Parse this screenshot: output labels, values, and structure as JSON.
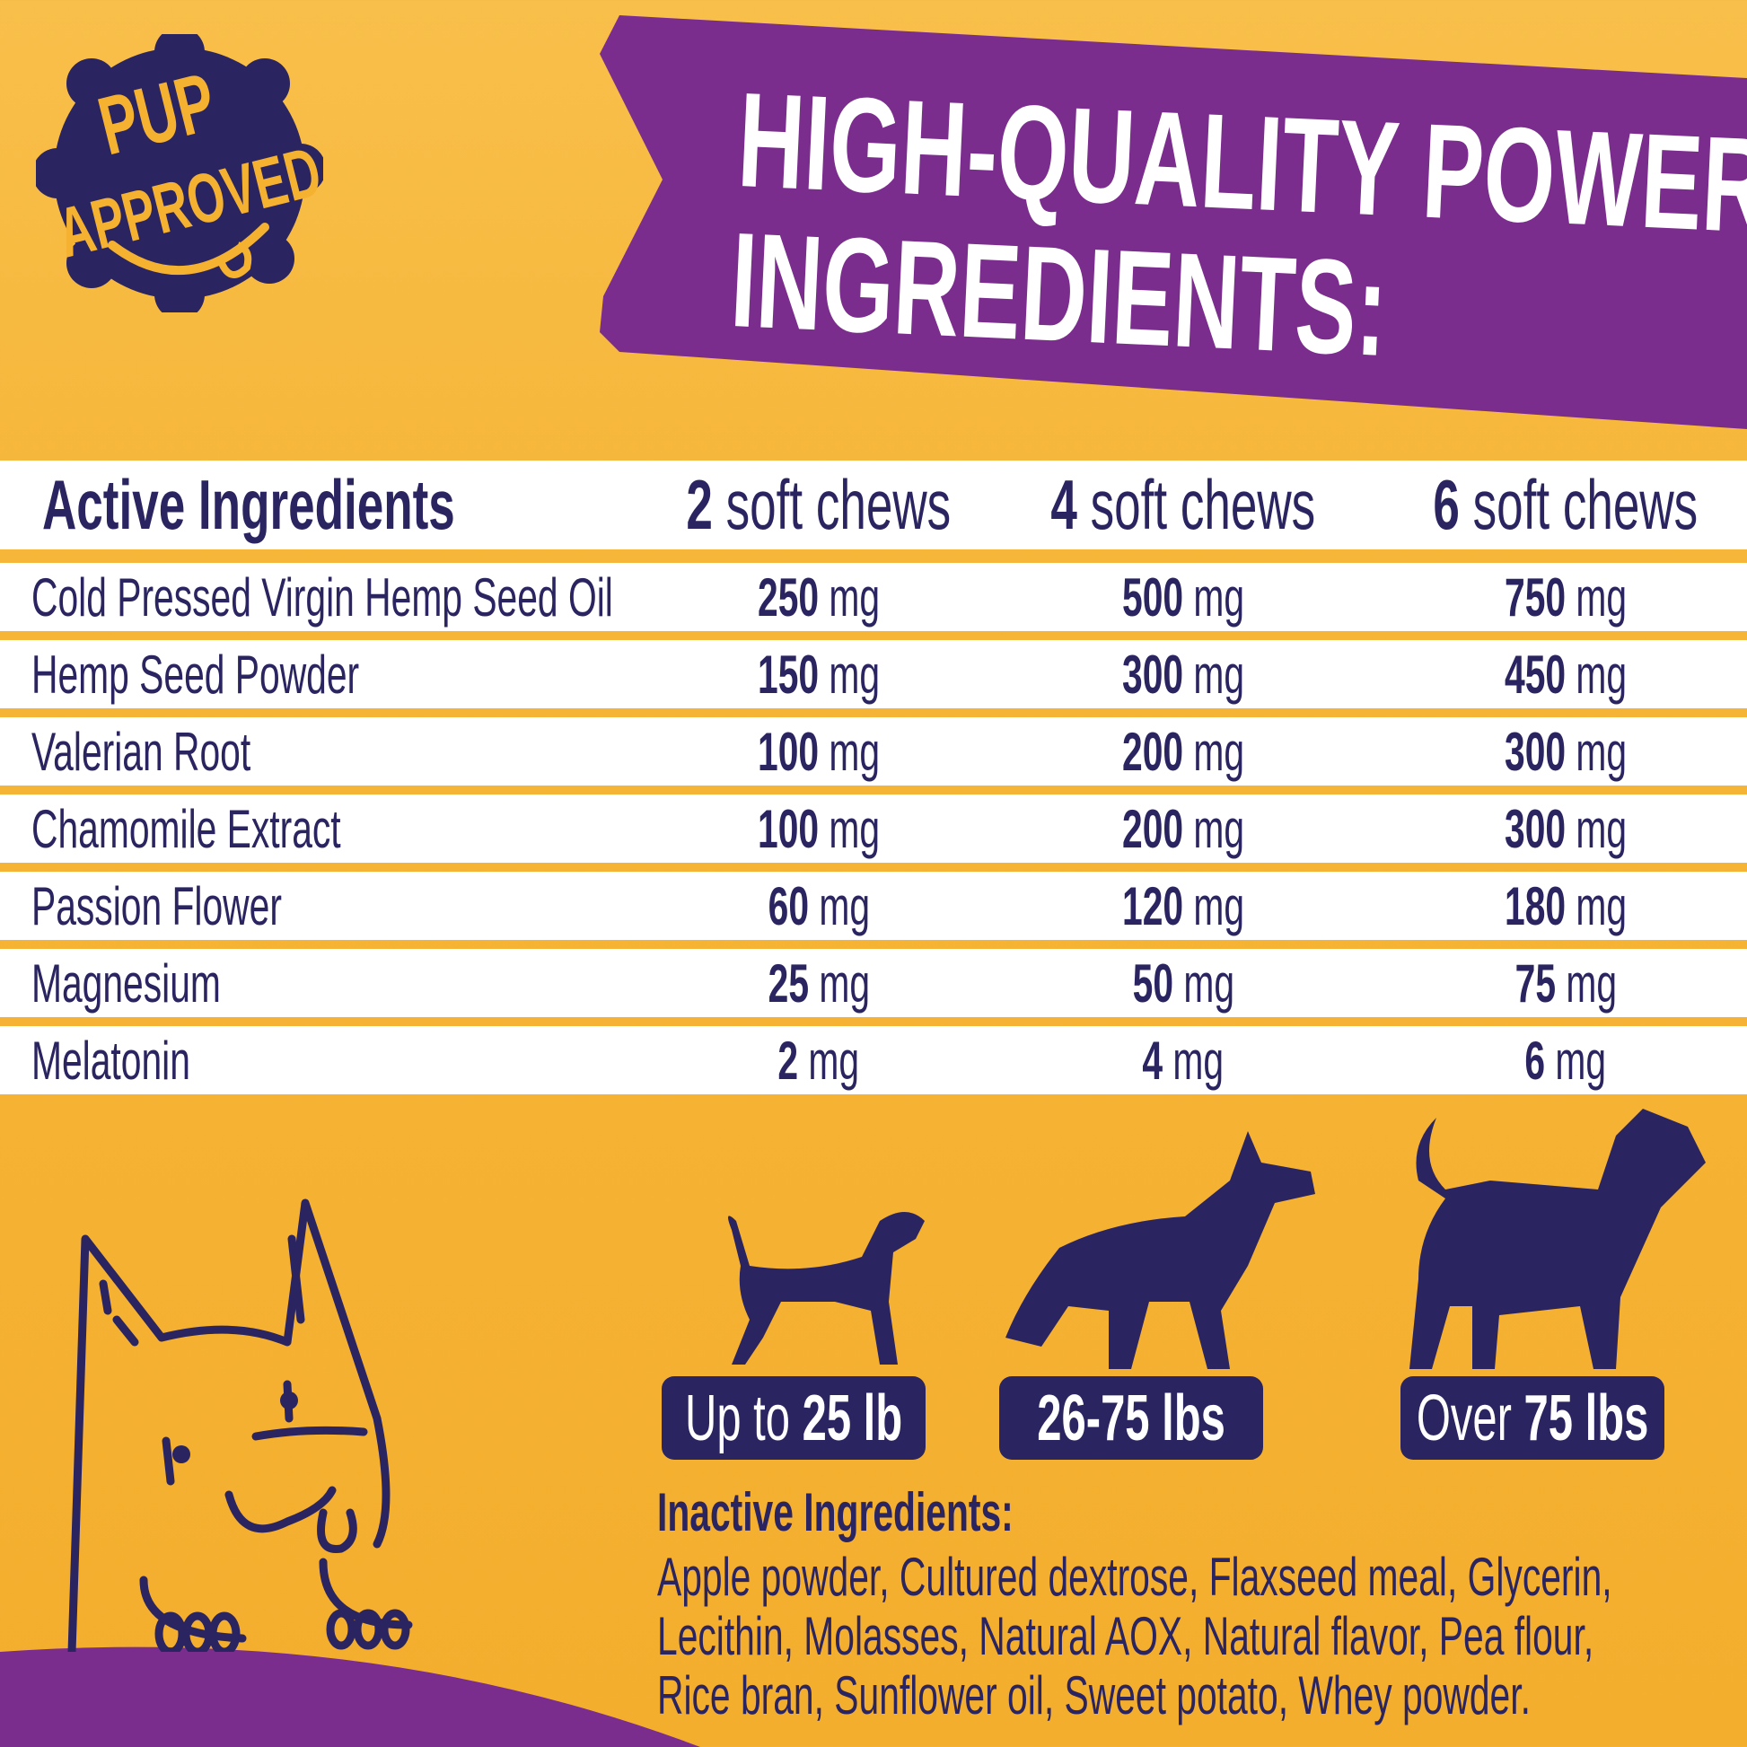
{
  "badge": {
    "line1": "PUP",
    "line2": "APPROVED"
  },
  "banner": {
    "line1": "HIGH-QUALITY POWERFUL",
    "line2": "INGREDIENTS:"
  },
  "table": {
    "headers": [
      {
        "bold": "Active Ingredients",
        "rest": ""
      },
      {
        "bold": "2",
        "rest": " soft chews"
      },
      {
        "bold": "4",
        "rest": " soft chews"
      },
      {
        "bold": "6",
        "rest": " soft chews"
      }
    ],
    "rows": [
      {
        "name": "Cold Pressed Virgin Hemp Seed Oil",
        "v": [
          "250",
          "500",
          "750"
        ]
      },
      {
        "name": "Hemp Seed Powder",
        "v": [
          "150",
          "300",
          "450"
        ]
      },
      {
        "name": "Valerian Root",
        "v": [
          "100",
          "200",
          "300"
        ]
      },
      {
        "name": "Chamomile Extract",
        "v": [
          "100",
          "200",
          "300"
        ]
      },
      {
        "name": "Passion Flower",
        "v": [
          "60",
          "120",
          "180"
        ]
      },
      {
        "name": "Magnesium",
        "v": [
          "25",
          "50",
          "75"
        ]
      },
      {
        "name": "Melatonin",
        "v": [
          "2",
          "4",
          "6"
        ]
      }
    ],
    "unit": "mg"
  },
  "weights": [
    {
      "pre": "Up to ",
      "bold": "25 lb"
    },
    {
      "pre": "",
      "bold": "26-75 lbs"
    },
    {
      "pre": "Over ",
      "bold": "75 lbs"
    }
  ],
  "inactive": {
    "heading": "Inactive Ingredients:",
    "lines": [
      "Apple powder, Cultured dextrose, Flaxseed meal, Glycerin,",
      "Lecithin, Molasses, Natural AOX, Natural flavor, Pea flour,",
      "Rice bran, Sunflower oil, Sweet potato, Whey powder."
    ]
  },
  "colors": {
    "navy": "#2A2460",
    "purple": "#7B2D8E",
    "orange": "#F5B130",
    "white": "#FFFFFF"
  },
  "icons": [
    "pup-approved-badge",
    "cartoon-dog",
    "small-dog-silhouette",
    "medium-dog-silhouette",
    "large-dog-silhouette"
  ]
}
